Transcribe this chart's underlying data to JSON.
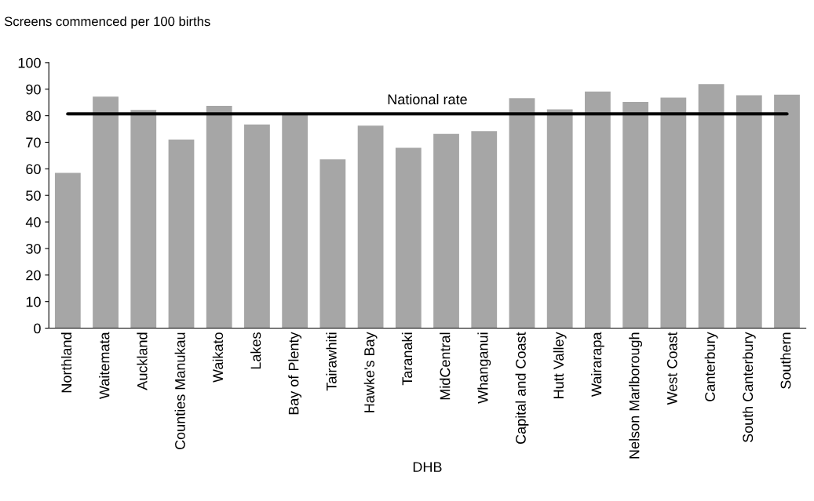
{
  "chart_data": {
    "type": "bar",
    "ylabel": "Screens commenced per 100 births",
    "xlabel": "DHB",
    "categories": [
      "Northland",
      "Waitemata",
      "Auckland",
      "Counties Manukau",
      "Waikato",
      "Lakes",
      "Bay of Plenty",
      "Tairawhiti",
      "Hawke's Bay",
      "Taranaki",
      "MidCentral",
      "Whanganui",
      "Capital and Coast",
      "Hutt Valley",
      "Wairarapa",
      "Nelson Marlborough",
      "West Coast",
      "Canterbury",
      "South Canterbury",
      "Southern"
    ],
    "values": [
      58.5,
      87.2,
      82.2,
      71.0,
      83.7,
      76.7,
      81.0,
      63.6,
      76.3,
      67.9,
      73.2,
      74.2,
      86.6,
      82.4,
      89.1,
      85.2,
      86.8,
      91.9,
      87.7,
      87.9
    ],
    "color": "#a6a6a6",
    "ylim": [
      0,
      100
    ],
    "yticks": [
      0,
      10,
      20,
      30,
      40,
      50,
      60,
      70,
      80,
      90,
      100
    ],
    "grid": false,
    "ref_lines": [
      {
        "axis": "y",
        "value": 80.7,
        "label": "National rate",
        "color": "#000000"
      }
    ]
  }
}
